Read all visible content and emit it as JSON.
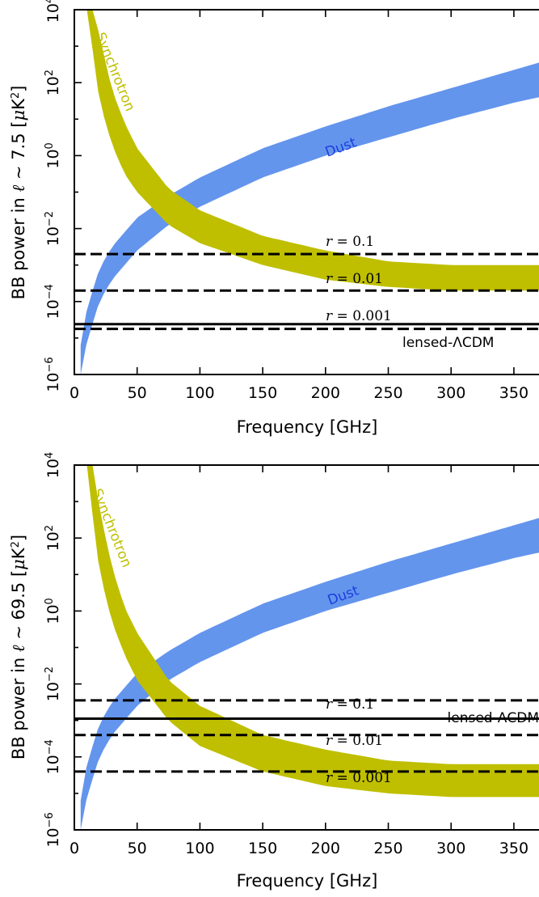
{
  "colors": {
    "dust": "#6495ed",
    "synchrotron": "#bfbf00",
    "lines": "#000000"
  },
  "chart_data": [
    {
      "type": "area",
      "xlabel": "Frequency [GHz]",
      "ylabel": "BB power in ℓ ∼ 7.5 [μK²]",
      "ylabel_parts": {
        "prefix": "BB power in ",
        "ell": "ℓ",
        "sim": " ∼ ",
        "num": "7.5",
        "unit_open": " [",
        "mu": "μ",
        "K": "K",
        "sup": "2",
        "unit_close": "]"
      },
      "xlim": [
        0,
        370
      ],
      "ylim_log10": [
        -6,
        4
      ],
      "yscale": "log",
      "xticks": [
        "0",
        "50",
        "100",
        "150",
        "200",
        "250",
        "300",
        "350"
      ],
      "yticks": [
        "10⁻⁶",
        "10⁻⁴",
        "10⁻²",
        "10⁰",
        "10²",
        "10⁴"
      ],
      "ytick_parts": [
        {
          "base": "10",
          "exp": "−6"
        },
        {
          "base": "10",
          "exp": "−4"
        },
        {
          "base": "10",
          "exp": "−2"
        },
        {
          "base": "10",
          "exp": "0"
        },
        {
          "base": "10",
          "exp": "2"
        },
        {
          "base": "10",
          "exp": "4"
        }
      ],
      "series": [
        {
          "name": "Dust",
          "kind": "band",
          "x": [
            5,
            10,
            20,
            30,
            50,
            75,
            100,
            150,
            200,
            250,
            300,
            350,
            370
          ],
          "y_low_log10": [
            -6.0,
            -5.1,
            -4.0,
            -3.4,
            -2.6,
            -1.9,
            -1.4,
            -0.6,
            0.0,
            0.5,
            1.0,
            1.45,
            1.6
          ],
          "y_high_log10": [
            -5.2,
            -4.2,
            -3.1,
            -2.5,
            -1.7,
            -1.1,
            -0.6,
            0.2,
            0.8,
            1.35,
            1.85,
            2.35,
            2.55
          ]
        },
        {
          "name": "Synchrotron",
          "kind": "band",
          "x": [
            10,
            15,
            20,
            30,
            40,
            50,
            75,
            100,
            150,
            200,
            250,
            300,
            350,
            370
          ],
          "y_low_log10": [
            4.0,
            2.8,
            1.5,
            0.3,
            -0.5,
            -1.0,
            -1.9,
            -2.4,
            -3.0,
            -3.4,
            -3.6,
            -3.7,
            -3.7,
            -3.7
          ],
          "y_high_log10": [
            4.0,
            4.0,
            3.3,
            1.8,
            0.9,
            0.2,
            -0.9,
            -1.5,
            -2.2,
            -2.6,
            -2.9,
            -3.0,
            -3.0,
            -3.0
          ]
        },
        {
          "name": "r = 0.1",
          "kind": "hline",
          "style": "dashed",
          "y_log10": -2.7
        },
        {
          "name": "r = 0.01",
          "kind": "hline",
          "style": "dashed",
          "y_log10": -3.7
        },
        {
          "name": "r = 0.001",
          "kind": "hline",
          "style": "dashed",
          "y_log10": -4.75
        },
        {
          "name": "lensed-ΛCDM",
          "kind": "hline",
          "style": "solid",
          "y_log10": -4.62
        }
      ],
      "annotations": {
        "dust": "Dust",
        "synchrotron": "Synchrotron",
        "r1": {
          "var": "r",
          "eq": " = 0.1"
        },
        "r2": {
          "var": "r",
          "eq": " = 0.01"
        },
        "r3": {
          "var": "r",
          "eq": " = 0.001"
        },
        "lensed": "lensed-ΛCDM"
      }
    },
    {
      "type": "area",
      "xlabel": "Frequency [GHz]",
      "ylabel": "BB power in ℓ ∼ 69.5 [μK²]",
      "ylabel_parts": {
        "prefix": "BB power in ",
        "ell": "ℓ",
        "sim": " ∼ ",
        "num": "69.5",
        "unit_open": " [",
        "mu": "μ",
        "K": "K",
        "sup": "2",
        "unit_close": "]"
      },
      "xlim": [
        0,
        370
      ],
      "ylim_log10": [
        -6,
        4
      ],
      "yscale": "log",
      "xticks": [
        "0",
        "50",
        "100",
        "150",
        "200",
        "250",
        "300",
        "350"
      ],
      "yticks": [
        "10⁻⁶",
        "10⁻⁴",
        "10⁻²",
        "10⁰",
        "10²",
        "10⁴"
      ],
      "ytick_parts": [
        {
          "base": "10",
          "exp": "−6"
        },
        {
          "base": "10",
          "exp": "−4"
        },
        {
          "base": "10",
          "exp": "−2"
        },
        {
          "base": "10",
          "exp": "0"
        },
        {
          "base": "10",
          "exp": "2"
        },
        {
          "base": "10",
          "exp": "4"
        }
      ],
      "series": [
        {
          "name": "Dust",
          "kind": "band",
          "x": [
            5,
            10,
            20,
            30,
            50,
            75,
            100,
            150,
            200,
            250,
            300,
            350,
            370
          ],
          "y_low_log10": [
            -6.0,
            -5.1,
            -4.0,
            -3.4,
            -2.6,
            -1.9,
            -1.4,
            -0.6,
            0.0,
            0.5,
            1.0,
            1.45,
            1.6
          ],
          "y_high_log10": [
            -5.2,
            -4.2,
            -3.1,
            -2.5,
            -1.7,
            -1.1,
            -0.6,
            0.2,
            0.8,
            1.35,
            1.85,
            2.35,
            2.55
          ]
        },
        {
          "name": "Synchrotron",
          "kind": "band",
          "x": [
            10,
            15,
            20,
            30,
            40,
            50,
            75,
            100,
            150,
            200,
            250,
            300,
            350,
            370
          ],
          "y_low_log10": [
            4.0,
            2.5,
            1.1,
            -0.3,
            -1.2,
            -1.9,
            -3.0,
            -3.7,
            -4.4,
            -4.8,
            -5.0,
            -5.1,
            -5.1,
            -5.1
          ],
          "y_high_log10": [
            4.0,
            4.0,
            2.8,
            1.2,
            0.1,
            -0.6,
            -1.9,
            -2.6,
            -3.4,
            -3.8,
            -4.1,
            -4.2,
            -4.2,
            -4.2
          ]
        },
        {
          "name": "r = 0.1",
          "kind": "hline",
          "style": "dashed",
          "y_log10": -2.45
        },
        {
          "name": "r = 0.01",
          "kind": "hline",
          "style": "dashed",
          "y_log10": -3.4
        },
        {
          "name": "r = 0.001",
          "kind": "hline",
          "style": "dashed",
          "y_log10": -4.4
        },
        {
          "name": "lensed-ΛCDM",
          "kind": "hline",
          "style": "solid",
          "y_log10": -2.95
        }
      ],
      "annotations": {
        "dust": "Dust",
        "synchrotron": "Synchrotron",
        "r1": {
          "var": "r",
          "eq": " = 0.1"
        },
        "r2": {
          "var": "r",
          "eq": " = 0.01"
        },
        "r3": {
          "var": "r",
          "eq": " = 0.001"
        },
        "lensed": "lensed-ΛCDM"
      }
    }
  ]
}
